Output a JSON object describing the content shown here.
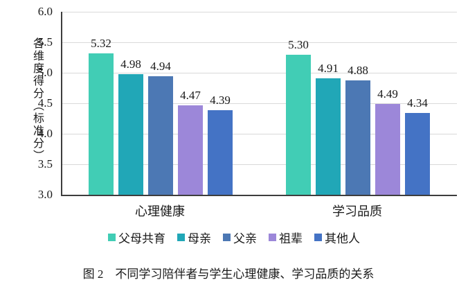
{
  "figure": {
    "caption": "图 2　不同学习陪伴者与学生心理健康、学习品质的关系"
  },
  "chart_data": {
    "type": "bar",
    "title": "",
    "xlabel": "",
    "ylabel": "各维度得分（标准分）",
    "categories": [
      "心理健康",
      "学习品质"
    ],
    "series": [
      {
        "name": "父母共育",
        "color": "#41cdb5",
        "values": [
          5.32,
          5.3
        ]
      },
      {
        "name": "母亲",
        "color": "#21a7b7",
        "values": [
          4.98,
          4.91
        ]
      },
      {
        "name": "父亲",
        "color": "#4c78b4",
        "values": [
          4.94,
          4.88
        ]
      },
      {
        "name": "祖辈",
        "color": "#9c87d9",
        "values": [
          4.47,
          4.49
        ]
      },
      {
        "name": "其他人",
        "color": "#4473c5",
        "values": [
          4.39,
          4.34
        ]
      }
    ],
    "ylim": [
      3.0,
      6.0
    ],
    "yticks": [
      "6.0",
      "5.5",
      "5.0",
      "4.5",
      "4.0",
      "3.5",
      "3.0"
    ],
    "grid": true,
    "legend_position": "bottom",
    "value_labels": "shown above bars, 2 decimal places",
    "axis_line_color": "#3d3d3d",
    "gridline_color": "#d9d9d9"
  }
}
